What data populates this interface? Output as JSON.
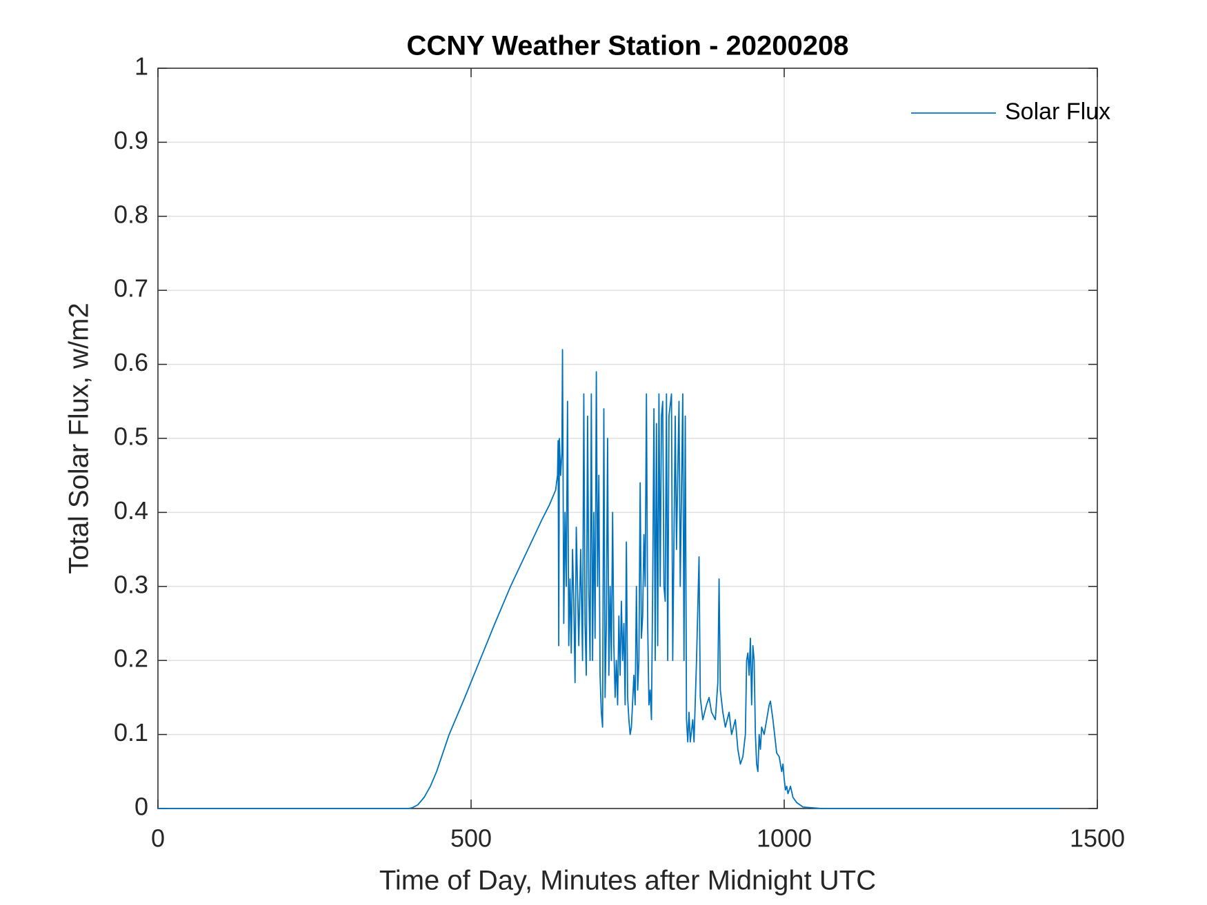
{
  "chart_data": {
    "type": "line",
    "title": "CCNY Weather Station - 20200208",
    "xlabel": "Time of Day, Minutes after Midnight UTC",
    "ylabel": "Total Solar Flux, w/m2",
    "x": [
      0,
      400,
      406,
      415,
      425,
      435,
      445,
      455,
      465,
      490,
      514,
      538,
      563,
      588,
      613,
      625,
      635,
      638,
      639,
      640,
      641,
      643,
      645,
      646,
      648,
      650,
      652,
      654,
      656,
      658,
      660,
      662,
      664,
      666,
      668,
      670,
      672,
      675,
      678,
      680,
      682,
      684,
      686,
      688,
      690,
      692,
      694,
      696,
      698,
      700,
      702,
      704,
      706,
      708,
      710,
      712,
      714,
      716,
      718,
      720,
      722,
      724,
      726,
      728,
      730,
      732,
      734,
      736,
      738,
      740,
      742,
      744,
      746,
      748,
      750,
      752,
      754,
      756,
      760,
      762,
      764,
      766,
      768,
      770,
      772,
      774,
      776,
      778,
      780,
      782,
      784,
      786,
      788,
      790,
      792,
      794,
      796,
      798,
      800,
      802,
      804,
      806,
      808,
      810,
      812,
      814,
      816,
      820,
      822,
      826,
      828,
      832,
      834,
      838,
      840,
      842,
      844,
      846,
      848,
      850,
      854,
      856,
      860,
      864,
      866,
      870,
      876,
      880,
      884,
      890,
      894,
      896,
      898,
      902,
      906,
      912,
      916,
      922,
      926,
      930,
      934,
      938,
      940,
      942,
      944,
      946,
      948,
      950,
      952,
      954,
      956,
      958,
      960,
      962,
      964,
      968,
      972,
      976,
      978,
      982,
      986,
      988,
      992,
      996,
      998,
      1000,
      1002,
      1004,
      1006,
      1010,
      1014,
      1020,
      1030,
      1060,
      1440
    ],
    "series": [
      {
        "name": "Solar Flux",
        "color": "#0072bd",
        "values": [
          0,
          0,
          0.001,
          0.005,
          0.015,
          0.03,
          0.05,
          0.075,
          0.1,
          0.15,
          0.2,
          0.25,
          0.3,
          0.345,
          0.39,
          0.41,
          0.43,
          0.45,
          0.497,
          0.22,
          0.5,
          0.45,
          0.48,
          0.62,
          0.25,
          0.4,
          0.3,
          0.55,
          0.22,
          0.31,
          0.21,
          0.35,
          0.28,
          0.17,
          0.38,
          0.3,
          0.22,
          0.35,
          0.2,
          0.56,
          0.25,
          0.18,
          0.53,
          0.3,
          0.2,
          0.56,
          0.2,
          0.4,
          0.23,
          0.59,
          0.3,
          0.45,
          0.18,
          0.13,
          0.11,
          0.54,
          0.15,
          0.25,
          0.5,
          0.18,
          0.3,
          0.2,
          0.4,
          0.22,
          0.15,
          0.2,
          0.14,
          0.26,
          0.18,
          0.28,
          0.2,
          0.25,
          0.14,
          0.36,
          0.15,
          0.12,
          0.1,
          0.11,
          0.18,
          0.14,
          0.3,
          0.16,
          0.2,
          0.44,
          0.23,
          0.26,
          0.37,
          0.3,
          0.56,
          0.25,
          0.14,
          0.16,
          0.12,
          0.3,
          0.54,
          0.2,
          0.52,
          0.22,
          0.56,
          0.3,
          0.53,
          0.55,
          0.3,
          0.28,
          0.56,
          0.2,
          0.53,
          0.56,
          0.2,
          0.53,
          0.35,
          0.55,
          0.3,
          0.56,
          0.2,
          0.53,
          0.12,
          0.09,
          0.13,
          0.09,
          0.12,
          0.09,
          0.2,
          0.34,
          0.15,
          0.12,
          0.14,
          0.15,
          0.13,
          0.12,
          0.17,
          0.31,
          0.16,
          0.13,
          0.11,
          0.13,
          0.1,
          0.12,
          0.08,
          0.06,
          0.07,
          0.1,
          0.2,
          0.21,
          0.18,
          0.23,
          0.14,
          0.22,
          0.2,
          0.1,
          0.06,
          0.05,
          0.1,
          0.08,
          0.11,
          0.1,
          0.12,
          0.14,
          0.145,
          0.12,
          0.09,
          0.075,
          0.07,
          0.05,
          0.06,
          0.04,
          0.025,
          0.03,
          0.02,
          0.03,
          0.015,
          0.008,
          0.002,
          0,
          0
        ]
      }
    ],
    "xlim": [
      0,
      1500
    ],
    "xticks": [
      0,
      500,
      1000,
      1500
    ],
    "ylim": [
      0,
      1
    ],
    "yticks": [
      0,
      0.1,
      0.2,
      0.3,
      0.4,
      0.5,
      0.6,
      0.7,
      0.8,
      0.9,
      1
    ],
    "grid": true,
    "legend": "upper right"
  }
}
